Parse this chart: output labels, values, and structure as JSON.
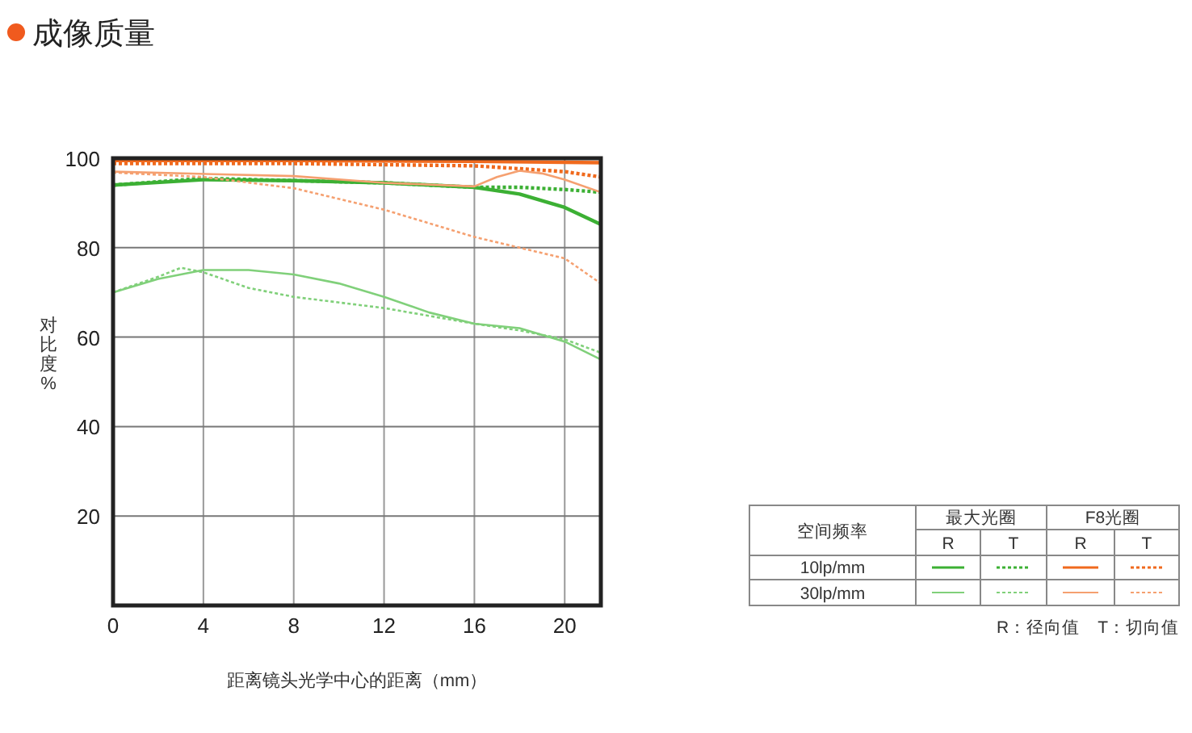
{
  "chart_data": {
    "type": "line",
    "title": "成像质量",
    "xlabel": "距离镜头光学中心的距离（mm）",
    "ylabel": "对比度%",
    "xlim": [
      0,
      21.6
    ],
    "ylim": [
      0,
      100
    ],
    "xticks": [
      0,
      4,
      8,
      12,
      16,
      20
    ],
    "yticks": [
      20,
      40,
      60,
      80,
      100
    ],
    "grid": true,
    "annotations": [
      "空间频率",
      "最大光圈",
      "F8光圈",
      "R",
      "T",
      "R",
      "T",
      "10lp/mm",
      "30lp/mm",
      "R：径向值　T：切向值"
    ],
    "series": [
      {
        "color": "#3cb034",
        "line_style": "solid",
        "x": [
          0,
          4,
          8,
          12,
          16,
          18,
          20,
          21.6
        ],
        "values": [
          94,
          95.2,
          95,
          94.5,
          93.5,
          92,
          89,
          85.2
        ]
      },
      {
        "color": "#3cb034",
        "line_style": "dotted",
        "x": [
          0,
          4,
          8,
          12,
          16,
          18,
          20,
          21.6
        ],
        "values": [
          94,
          95.5,
          95,
          94.5,
          93.5,
          93.5,
          93,
          92.4
        ]
      },
      {
        "color": "#80d07a",
        "line_style": "solid",
        "x": [
          0,
          2,
          4,
          6,
          8,
          10,
          12,
          14,
          16,
          18,
          20,
          21.6
        ],
        "values": [
          70,
          73,
          75,
          75,
          74,
          72,
          69,
          65.5,
          63,
          62,
          59,
          55
        ]
      },
      {
        "color": "#80d07a",
        "line_style": "dotted",
        "x": [
          0,
          2,
          3,
          4,
          6,
          8,
          12,
          16,
          18,
          20,
          21.6
        ],
        "values": [
          70,
          73.5,
          75.5,
          74.5,
          71,
          69,
          66.5,
          63,
          61.5,
          59.5,
          56.5
        ]
      },
      {
        "color": "#f06a1e",
        "line_style": "solid",
        "x": [
          0,
          8,
          16,
          21.6
        ],
        "values": [
          99.5,
          99.5,
          99.3,
          99
        ]
      },
      {
        "color": "#f06a1e",
        "line_style": "dotted",
        "x": [
          0,
          8,
          16,
          20,
          21.6
        ],
        "values": [
          98.8,
          98.8,
          98.3,
          97,
          95.8
        ]
      },
      {
        "color": "#f5a070",
        "line_style": "solid",
        "x": [
          0,
          8,
          12,
          16,
          17,
          18,
          19,
          20,
          21.6
        ],
        "values": [
          97,
          96,
          94.5,
          93.7,
          95.8,
          97.2,
          96.6,
          95.2,
          92.4
        ]
      },
      {
        "color": "#f5a070",
        "line_style": "dotted",
        "x": [
          0,
          4,
          8,
          12,
          16,
          20,
          21.6
        ],
        "values": [
          96.8,
          95.8,
          93.3,
          88.5,
          82.4,
          77.6,
          72
        ]
      }
    ]
  }
}
